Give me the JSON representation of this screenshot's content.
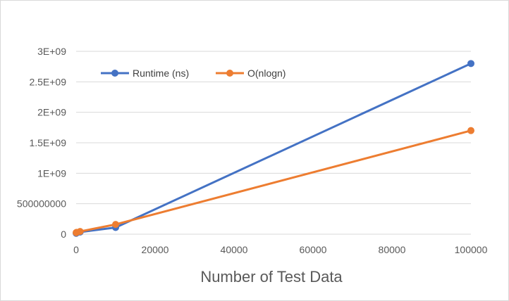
{
  "chart_data": {
    "type": "scatter",
    "title": "",
    "xlabel": "Number of Test Data",
    "ylabel": "",
    "xlim": [
      0,
      100000
    ],
    "ylim": [
      0,
      3000000000
    ],
    "x_ticks": [
      0,
      20000,
      40000,
      60000,
      80000,
      100000
    ],
    "x_tick_labels": [
      "0",
      "20000",
      "40000",
      "60000",
      "80000",
      "100000"
    ],
    "y_ticks": [
      0,
      500000000,
      1000000000,
      1500000000,
      2000000000,
      2500000000,
      3000000000
    ],
    "y_tick_labels": [
      "0",
      "500000000",
      "1E+09",
      "1.5E+09",
      "2E+09",
      "2.5E+09",
      "3E+09"
    ],
    "grid": "horizontal",
    "legend_position": "top-left",
    "series": [
      {
        "name": "Runtime (ns)",
        "color": "#4472C4",
        "marker": "circle",
        "points": [
          {
            "x": 10,
            "y": 15000000
          },
          {
            "x": 100,
            "y": 20000000
          },
          {
            "x": 1000,
            "y": 35000000
          },
          {
            "x": 10000,
            "y": 110000000
          },
          {
            "x": 100000,
            "y": 2800000000
          }
        ]
      },
      {
        "name": "O(nlogn)",
        "color": "#ED7D31",
        "marker": "circle",
        "points": [
          {
            "x": 10,
            "y": 25000000
          },
          {
            "x": 100,
            "y": 30000000
          },
          {
            "x": 1000,
            "y": 45000000
          },
          {
            "x": 10000,
            "y": 160000000
          },
          {
            "x": 100000,
            "y": 1700000000
          }
        ]
      }
    ]
  }
}
